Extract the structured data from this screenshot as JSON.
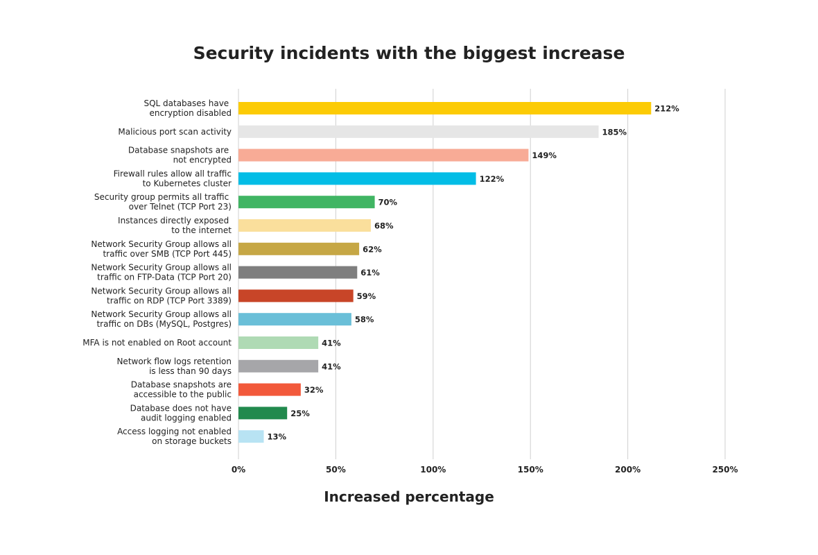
{
  "chart_data": {
    "type": "bar",
    "orientation": "horizontal",
    "title": "Security incidents with the biggest increase",
    "xlabel": "Increased percentage",
    "ylabel": "",
    "xlim": [
      0,
      250
    ],
    "ticks": [
      0,
      50,
      100,
      150,
      200,
      250
    ],
    "tick_labels": [
      "0%",
      "50%",
      "100%",
      "150%",
      "200%",
      "250%"
    ],
    "grid": "vertical",
    "legend": "none",
    "categories": [
      [
        "SQL databases have ",
        "encryption disabled"
      ],
      [
        "Malicious port scan activity"
      ],
      [
        "Database snapshots are ",
        "not encrypted"
      ],
      [
        "Firewall rules allow all traffic",
        "to Kubernetes cluster"
      ],
      [
        "Security group permits all traffic ",
        "over Telnet (TCP Port 23)"
      ],
      [
        "Instances directly exposed ",
        "to the internet"
      ],
      [
        "Network Security Group allows all",
        "traffic over SMB (TCP Port 445)"
      ],
      [
        "Network Security Group allows all",
        "traffic on FTP-Data (TCP Port 20)"
      ],
      [
        "Network Security Group allows all",
        "traffic on RDP (TCP Port 3389)"
      ],
      [
        "Network Security Group allows all",
        "traffic on DBs (MySQL, Postgres)"
      ],
      [
        "MFA is not enabled on Root account"
      ],
      [
        "Network flow logs retention",
        "is less than 90 days"
      ],
      [
        "Database snapshots are",
        "accessible to the public"
      ],
      [
        "Database does not have",
        "audit logging enabled"
      ],
      [
        "Access logging not enabled",
        "on storage buckets"
      ]
    ],
    "values": [
      212,
      185,
      149,
      122,
      70,
      68,
      62,
      61,
      59,
      58,
      41,
      41,
      32,
      25,
      13
    ],
    "value_labels": [
      "212%",
      "185%",
      "149%",
      "122%",
      "70%",
      "68%",
      "62%",
      "61%",
      "59%",
      "58%",
      "41%",
      "41%",
      "32%",
      "25%",
      "13%"
    ],
    "colors": [
      "#fccb05",
      "#e6e6e6",
      "#f8ab96",
      "#03bde6",
      "#40b563",
      "#fadf9c",
      "#c6a745",
      "#7f7f7f",
      "#c84528",
      "#6abfd8",
      "#afdab4",
      "#a6a6a9",
      "#f2593b",
      "#218a4d",
      "#b8e3f3"
    ]
  }
}
